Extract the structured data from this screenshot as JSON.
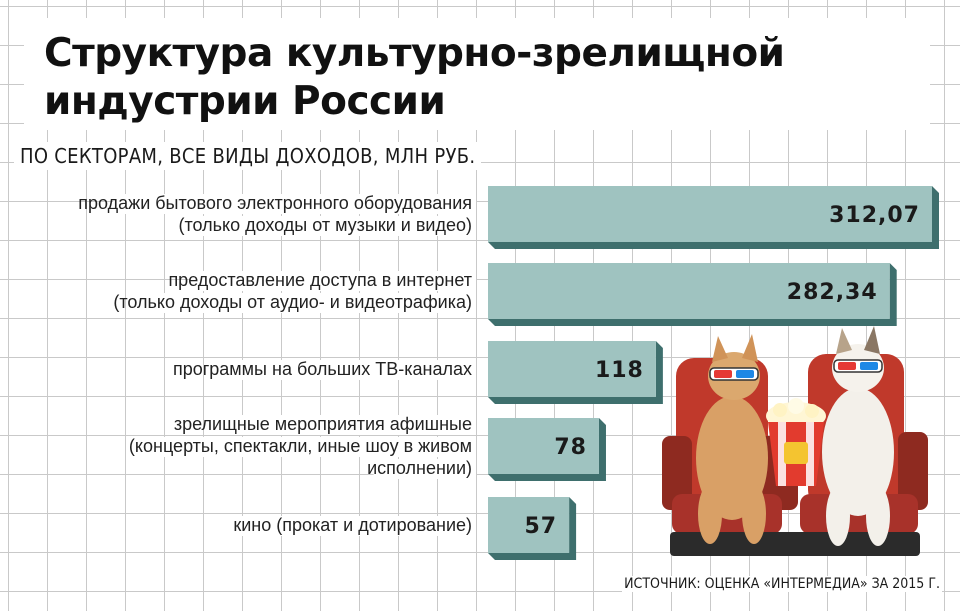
{
  "title": "Структура культурно-зрелищной индустрии России",
  "subtitle": "ПО СЕКТОРАМ, ВСЕ ВИДЫ ДОХОДОВ, МЛН РУБ.",
  "source": "ИСТОЧНИК: ОЦЕНКА «ИНТЕРМЕДИА» ЗА 2015 Г.",
  "colors": {
    "bar": "#9fc3c0",
    "bar_shadow": "#3e6f6d",
    "grid": "#c9c9c9"
  },
  "illustration": {
    "name": "cats-in-3d-glasses-with-popcorn"
  },
  "chart_data": {
    "type": "bar",
    "orientation": "horizontal",
    "title": "Структура культурно-зрелищной индустрии России",
    "subtitle": "ПО СЕКТОРАМ, ВСЕ ВИДЫ ДОХОДОВ, МЛН РУБ.",
    "categories": [
      [
        "продажи бытового электронного оборудования",
        "(только доходы от музыки и видео)"
      ],
      [
        "предоставление доступа в интернет",
        "(только доходы от аудио- и видеотрафика)"
      ],
      [
        "программы на больших ТВ-каналах"
      ],
      [
        "зрелищные мероприятия афишные",
        "(концерты, спектакли, иные шоу в живом",
        "исполнении)"
      ],
      [
        "кино (прокат и дотирование)"
      ]
    ],
    "values": [
      312.07,
      282.34,
      118,
      78,
      57
    ],
    "value_labels": [
      "312,07",
      "282,34",
      "118",
      "78",
      "57"
    ],
    "grid": true
  }
}
